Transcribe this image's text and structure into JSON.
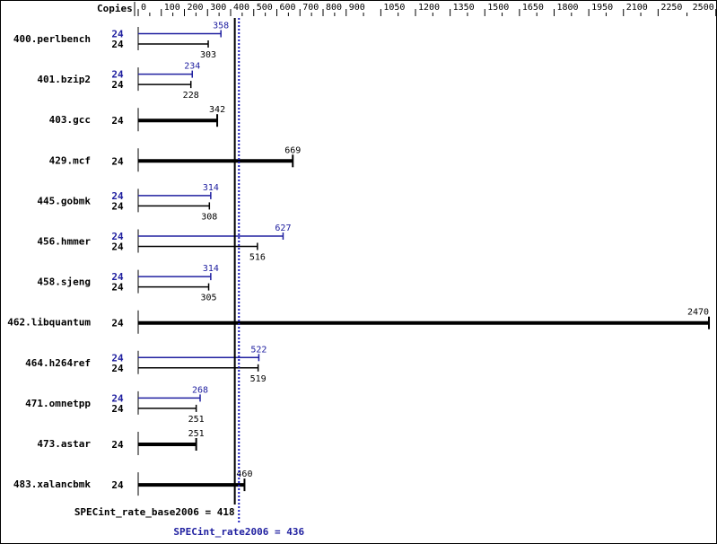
{
  "chart_data": {
    "type": "bar",
    "orientation": "horizontal",
    "axis_header": "Copies",
    "x_ticks": [
      0,
      100,
      200,
      300,
      400,
      500,
      600,
      700,
      800,
      900,
      1050,
      1200,
      1350,
      1500,
      1650,
      1800,
      1950,
      2100,
      2250,
      2500
    ],
    "xlim": [
      0,
      2500
    ],
    "colors": {
      "base": "#000000",
      "peak": "#2020a0"
    },
    "benchmarks": [
      {
        "name": "400.perlbench",
        "peak_copies": "24",
        "peak": 358,
        "base_copies": "24",
        "base": 303
      },
      {
        "name": "401.bzip2",
        "peak_copies": "24",
        "peak": 234,
        "base_copies": "24",
        "base": 228
      },
      {
        "name": "403.gcc",
        "base_copies": "24",
        "base": 342
      },
      {
        "name": "429.mcf",
        "base_copies": "24",
        "base": 669
      },
      {
        "name": "445.gobmk",
        "peak_copies": "24",
        "peak": 314,
        "base_copies": "24",
        "base": 308
      },
      {
        "name": "456.hmmer",
        "peak_copies": "24",
        "peak": 627,
        "base_copies": "24",
        "base": 516
      },
      {
        "name": "458.sjeng",
        "peak_copies": "24",
        "peak": 314,
        "base_copies": "24",
        "base": 305
      },
      {
        "name": "462.libquantum",
        "base_copies": "24",
        "base": 2470
      },
      {
        "name": "464.h264ref",
        "peak_copies": "24",
        "peak": 522,
        "base_copies": "24",
        "base": 519
      },
      {
        "name": "471.omnetpp",
        "peak_copies": "24",
        "peak": 268,
        "base_copies": "24",
        "base": 251
      },
      {
        "name": "473.astar",
        "base_copies": "24",
        "base": 251
      },
      {
        "name": "483.xalancbmk",
        "base_copies": "24",
        "base": 460
      }
    ],
    "summary": {
      "base_label": "SPECint_rate_base2006 = 418",
      "base_value": 418,
      "peak_label": "SPECint_rate2006 = 436",
      "peak_value": 436
    }
  }
}
